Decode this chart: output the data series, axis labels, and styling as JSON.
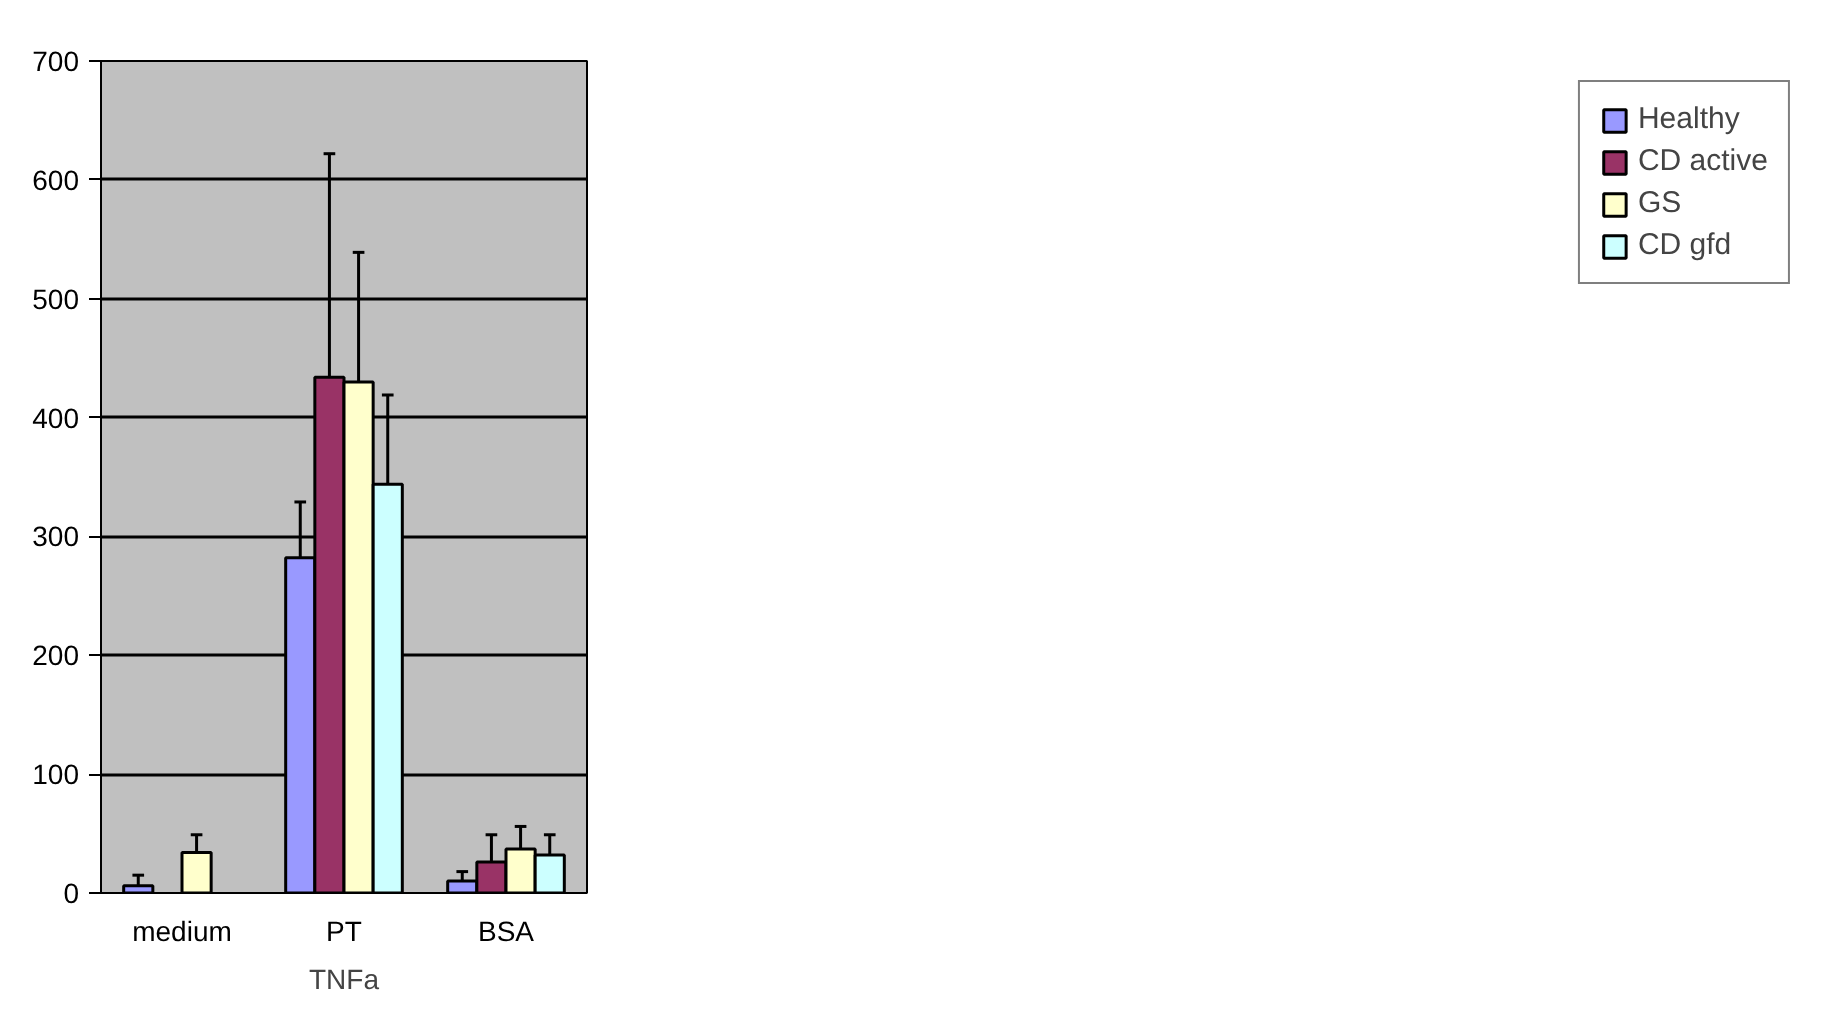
{
  "chart_data": {
    "type": "bar",
    "categories": [
      "medium",
      "PT",
      "BSA"
    ],
    "xlabel": "TNFa",
    "series": [
      {
        "name": "Healthy",
        "color": "#9999ff",
        "values": [
          6,
          282,
          10
        ],
        "errors": [
          [
            6,
            15
          ],
          [
            282,
            329
          ],
          [
            10,
            18
          ]
        ]
      },
      {
        "name": "CD active",
        "color": "#993366",
        "values": [
          null,
          434,
          26
        ],
        "errors": [
          null,
          [
            434,
            622
          ],
          [
            26,
            49
          ]
        ]
      },
      {
        "name": "GS",
        "color": "#ffffcc",
        "values": [
          34,
          430,
          37
        ],
        "errors": [
          [
            34,
            49
          ],
          [
            430,
            539
          ],
          [
            37,
            56
          ]
        ]
      },
      {
        "name": "CD gfd",
        "color": "#ccffff",
        "values": [
          null,
          344,
          32
        ],
        "errors": [
          null,
          [
            344,
            419
          ],
          [
            32,
            49
          ]
        ]
      }
    ],
    "ylim": [
      0,
      700
    ],
    "yticks": [
      0,
      100,
      200,
      300,
      400,
      500,
      600,
      700
    ],
    "grid": "y",
    "legend": "right"
  }
}
